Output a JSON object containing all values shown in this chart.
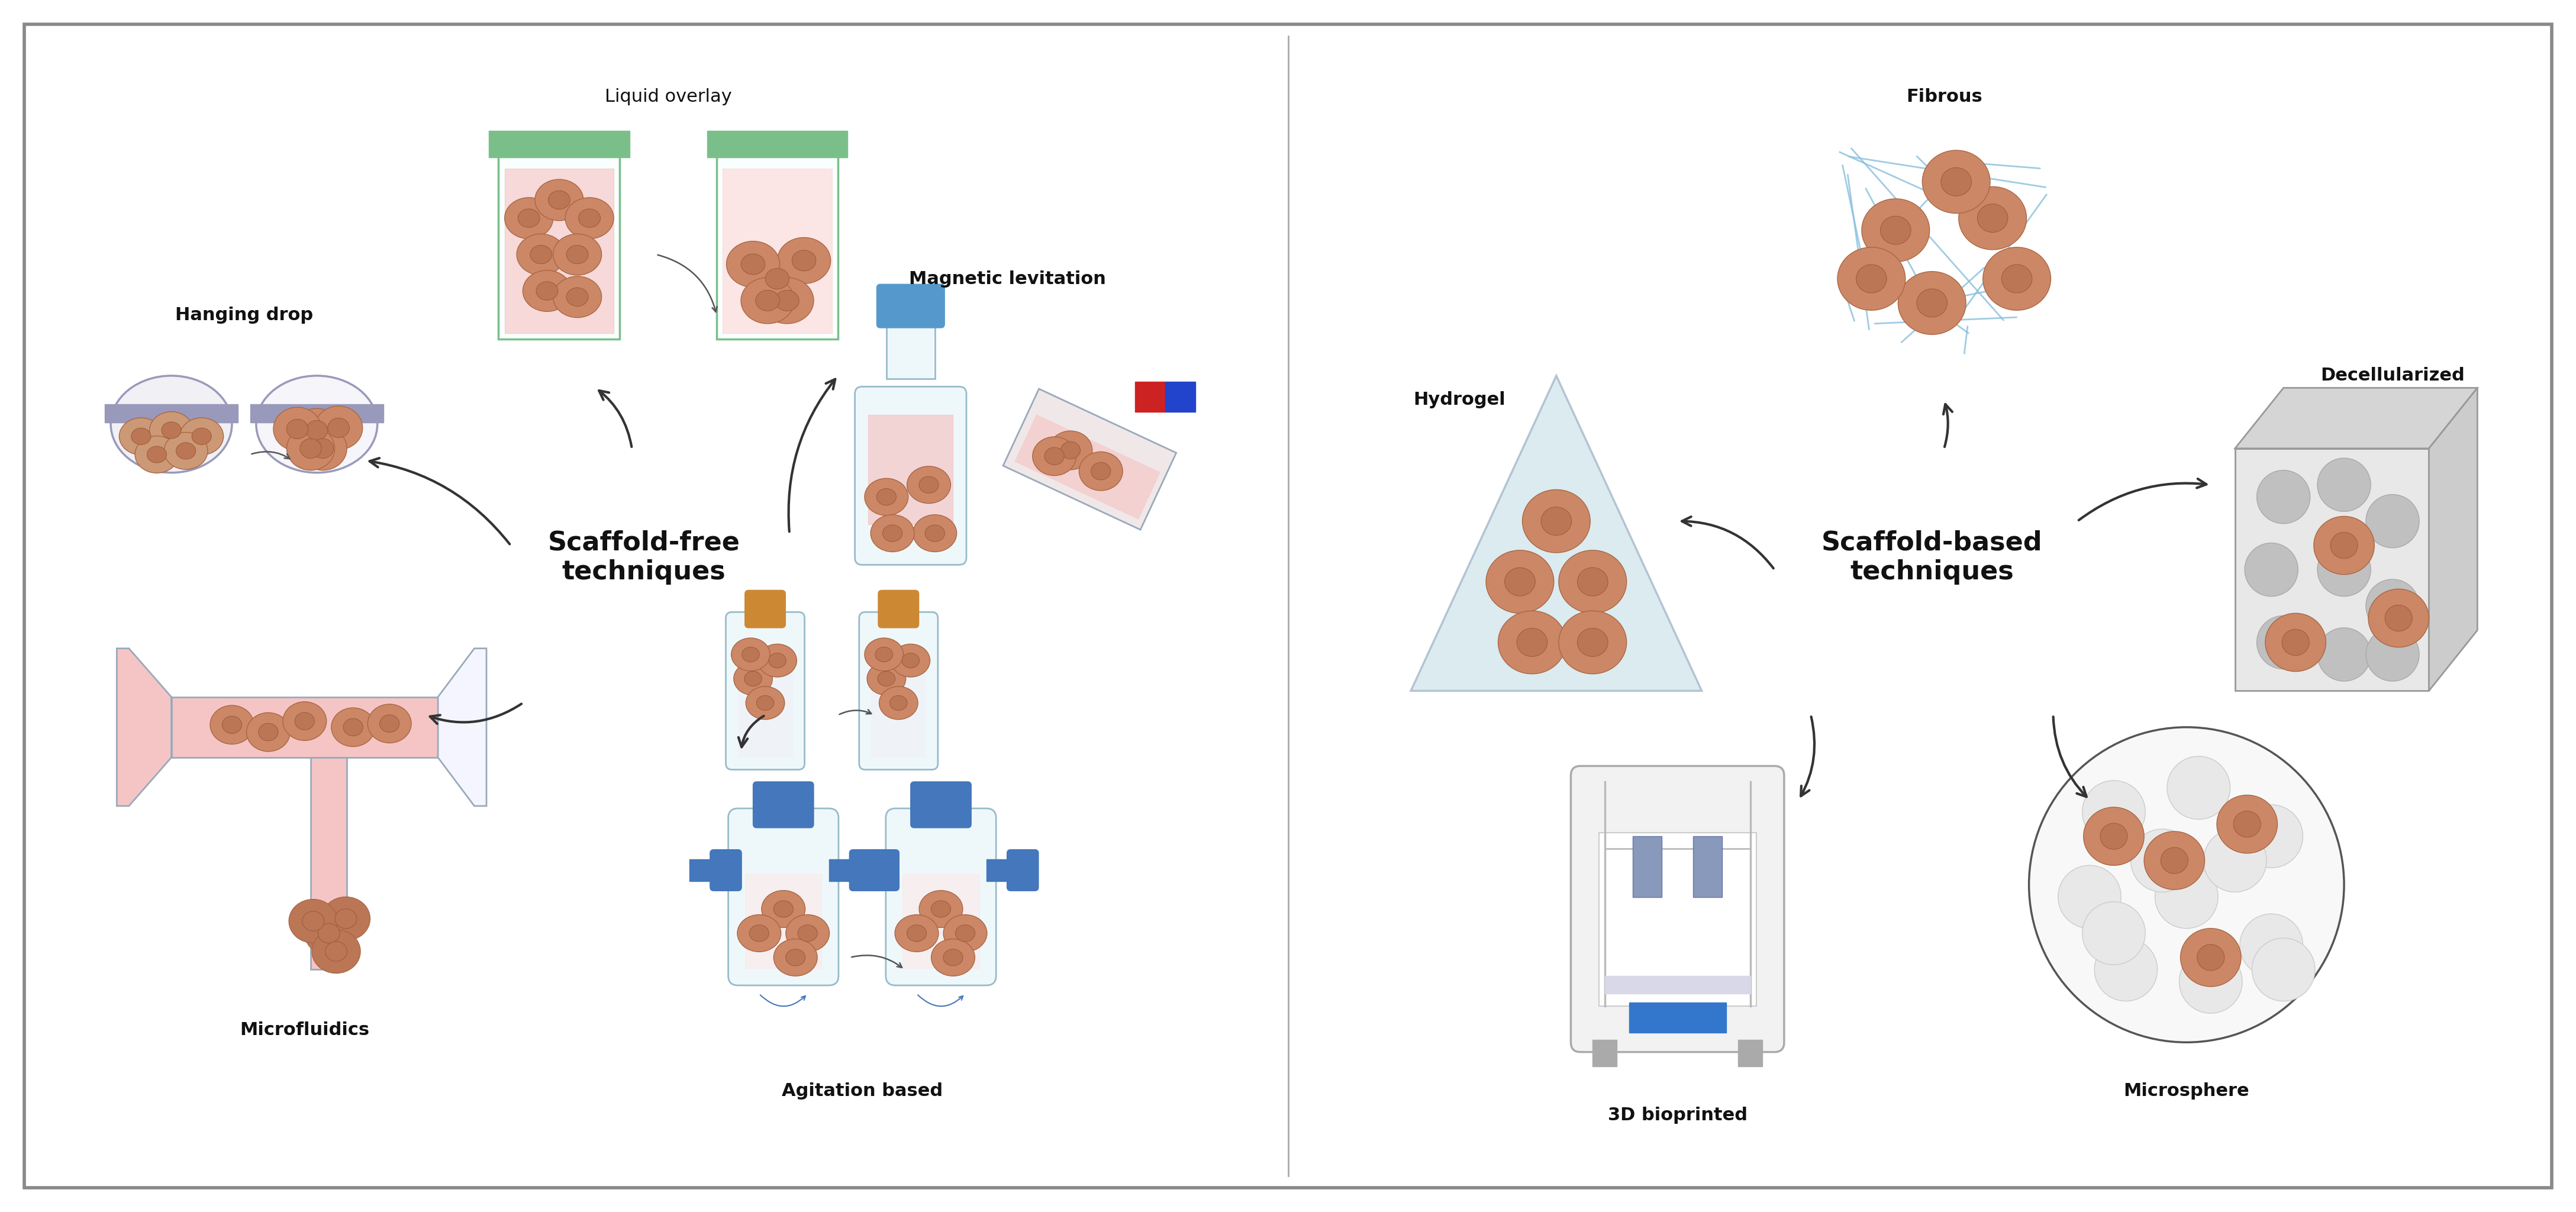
{
  "fig_width": 43.53,
  "fig_height": 20.48,
  "bg_color": "#ffffff",
  "left_title_line1": "Scaffold-free",
  "left_title_line2": "techniques",
  "right_title_line1": "Scaffold-based",
  "right_title_line2": "techniques",
  "label_fontsize": 22,
  "title_fontsize": 32,
  "arrow_color": "#222222",
  "cell_color": "#cc8866",
  "cell_outline": "#aa6644",
  "pink_liquid": "#f5c5c5",
  "teal_border": "#7abf8a",
  "blue_cap": "#4477bb",
  "orange_cap": "#cc8833"
}
